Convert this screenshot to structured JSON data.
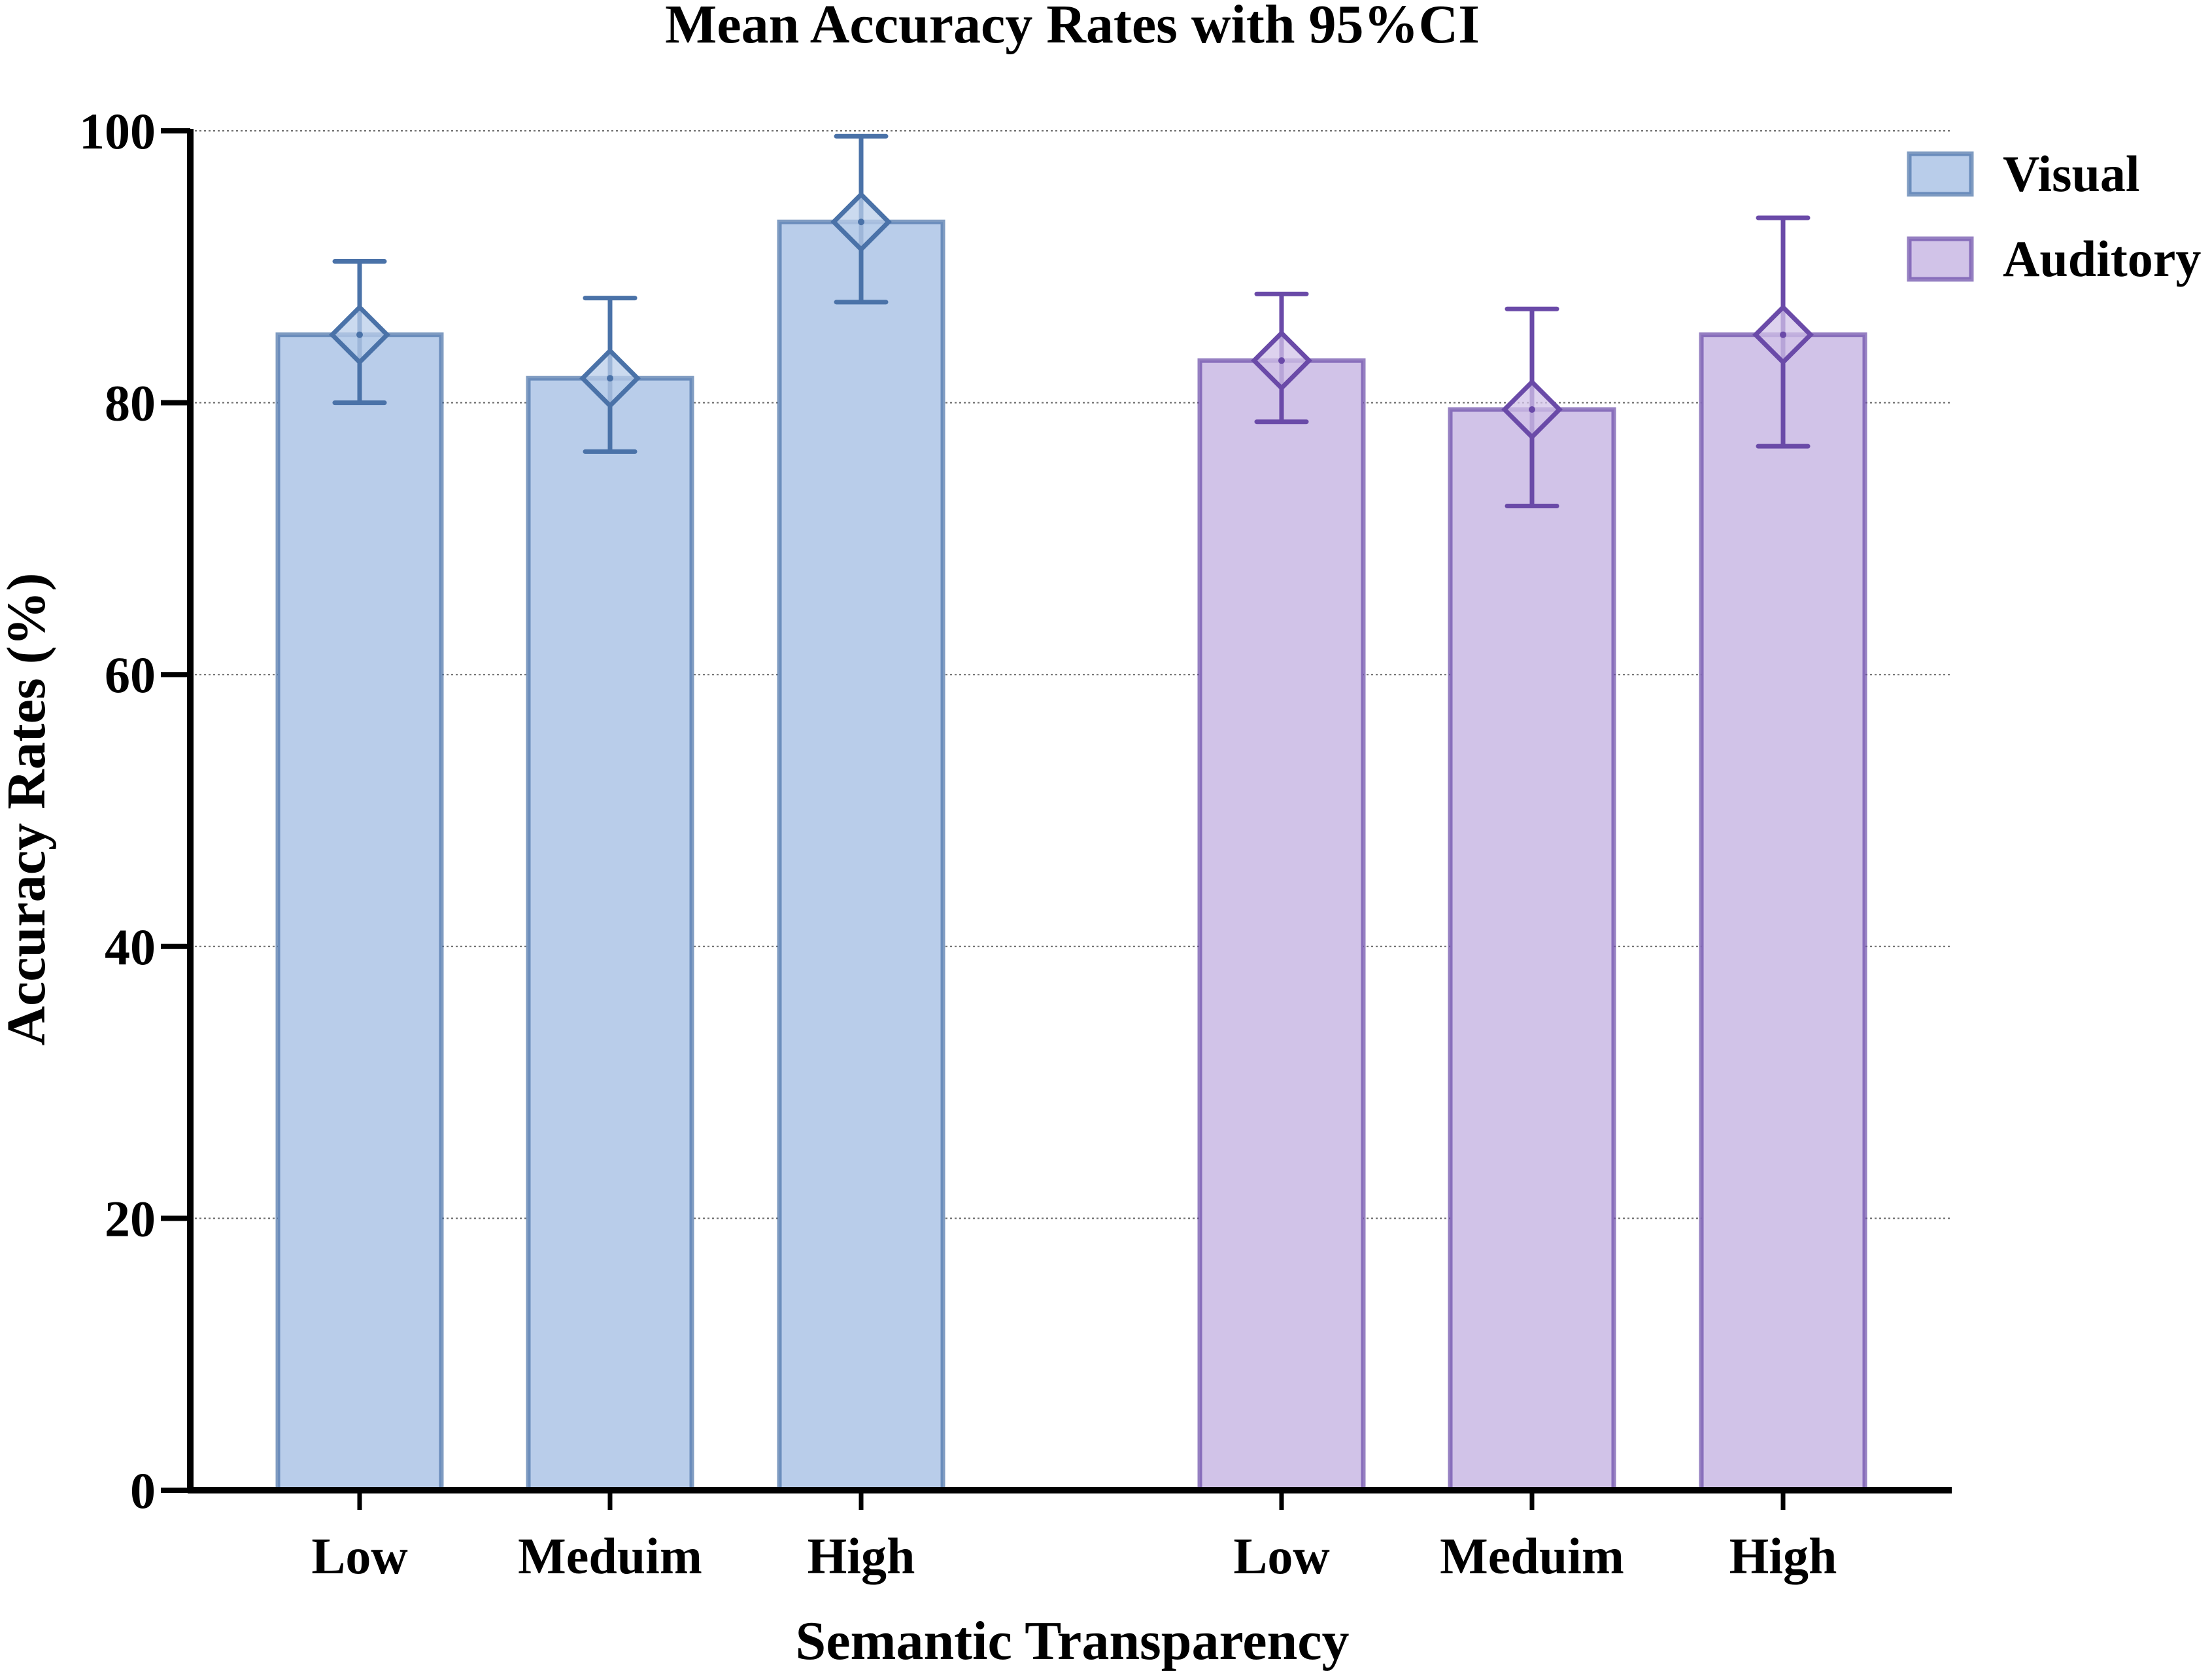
{
  "chart_data": {
    "type": "bar",
    "title": "Mean Accuracy Rates with 95%CI",
    "xlabel": "Semantic Transparency",
    "ylabel": "Accuracy Rates (%)",
    "ylim": [
      0,
      100
    ],
    "yticks": [
      0,
      20,
      40,
      60,
      80,
      100
    ],
    "grid": true,
    "legend_position": "top-right",
    "series": [
      {
        "name": "Visual",
        "color": "#b9cdea",
        "edge_color": "#4a72a8",
        "categories": [
          "Low",
          "Meduim",
          "High"
        ],
        "values": [
          85.0,
          81.8,
          93.3
        ],
        "ci_lower": [
          80.0,
          76.4,
          87.4
        ],
        "ci_upper": [
          90.4,
          87.7,
          99.6
        ]
      },
      {
        "name": "Auditory",
        "color": "#d1c3e8",
        "edge_color": "#6a4aa8",
        "categories": [
          "Low",
          "Meduim",
          "High"
        ],
        "values": [
          83.1,
          79.5,
          85.0
        ],
        "ci_lower": [
          78.6,
          72.4,
          76.8
        ],
        "ci_upper": [
          88.0,
          86.9,
          93.6
        ]
      }
    ]
  }
}
